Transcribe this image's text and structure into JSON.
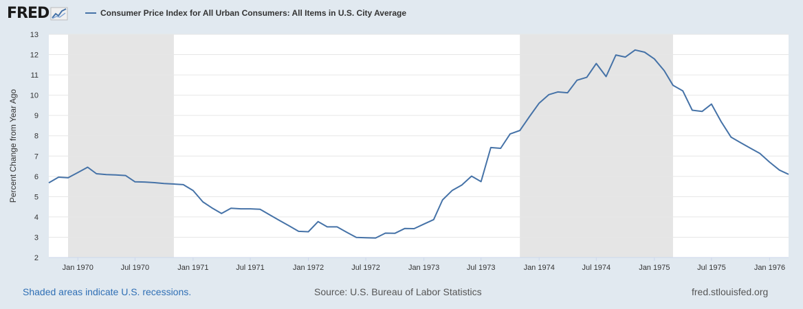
{
  "brand": {
    "logo_text": "FRED"
  },
  "legend": {
    "series_label": "Consumer Price Index for All Urban Consumers: All Items in U.S. City Average",
    "color": "#4572a7"
  },
  "footer": {
    "recession_note": "Shaded areas indicate U.S. recessions.",
    "source": "Source: U.S. Bureau of Labor Statistics",
    "site": "fred.stlouisfed.org"
  },
  "colors": {
    "background": "#e1e9f0",
    "plot_background": "#ffffff",
    "recession_shade": "#e5e5e5",
    "line": "#4572a7",
    "grid": "#e6e6e6"
  },
  "chart_data": {
    "type": "line",
    "title": "",
    "xlabel": "",
    "ylabel": "Percent Change from Year Ago",
    "ylim": [
      2,
      13
    ],
    "yticks": [
      2,
      3,
      4,
      5,
      6,
      7,
      8,
      9,
      10,
      11,
      12,
      13
    ],
    "xlim": [
      "1969-10-01",
      "1976-03-01"
    ],
    "xticks": [
      {
        "date": "1970-01-01",
        "label": "Jan 1970"
      },
      {
        "date": "1970-07-01",
        "label": "Jul 1970"
      },
      {
        "date": "1971-01-01",
        "label": "Jan 1971"
      },
      {
        "date": "1971-07-01",
        "label": "Jul 1971"
      },
      {
        "date": "1972-01-01",
        "label": "Jan 1972"
      },
      {
        "date": "1972-07-01",
        "label": "Jul 1972"
      },
      {
        "date": "1973-01-01",
        "label": "Jan 1973"
      },
      {
        "date": "1973-07-01",
        "label": "Jul 1973"
      },
      {
        "date": "1974-01-01",
        "label": "Jan 1974"
      },
      {
        "date": "1974-07-01",
        "label": "Jul 1974"
      },
      {
        "date": "1975-01-01",
        "label": "Jan 1975"
      },
      {
        "date": "1975-07-01",
        "label": "Jul 1975"
      },
      {
        "date": "1976-01-01",
        "label": "Jan 1976"
      }
    ],
    "recessions": [
      {
        "start": "1969-12-01",
        "end": "1970-11-01"
      },
      {
        "start": "1973-11-01",
        "end": "1975-03-01"
      }
    ],
    "grid": true,
    "series": [
      {
        "name": "Consumer Price Index for All Urban Consumers: All Items in U.S. City Average",
        "x": [
          "1969-10-01",
          "1969-11-01",
          "1969-12-01",
          "1970-01-01",
          "1970-02-01",
          "1970-03-01",
          "1970-04-01",
          "1970-05-01",
          "1970-06-01",
          "1970-07-01",
          "1970-08-01",
          "1970-09-01",
          "1970-10-01",
          "1970-11-01",
          "1970-12-01",
          "1971-01-01",
          "1971-02-01",
          "1971-03-01",
          "1971-04-01",
          "1971-05-01",
          "1971-06-01",
          "1971-07-01",
          "1971-08-01",
          "1971-09-01",
          "1971-10-01",
          "1971-11-01",
          "1971-12-01",
          "1972-01-01",
          "1972-02-01",
          "1972-03-01",
          "1972-04-01",
          "1972-05-01",
          "1972-06-01",
          "1972-07-01",
          "1972-08-01",
          "1972-09-01",
          "1972-10-01",
          "1972-11-01",
          "1972-12-01",
          "1973-01-01",
          "1973-02-01",
          "1973-03-01",
          "1973-04-01",
          "1973-05-01",
          "1973-06-01",
          "1973-07-01",
          "1973-08-01",
          "1973-09-01",
          "1973-10-01",
          "1973-11-01",
          "1973-12-01",
          "1974-01-01",
          "1974-02-01",
          "1974-03-01",
          "1974-04-01",
          "1974-05-01",
          "1974-06-01",
          "1974-07-01",
          "1974-08-01",
          "1974-09-01",
          "1974-10-01",
          "1974-11-01",
          "1974-12-01",
          "1975-01-01",
          "1975-02-01",
          "1975-03-01",
          "1975-04-01",
          "1975-05-01",
          "1975-06-01",
          "1975-07-01",
          "1975-08-01",
          "1975-09-01",
          "1975-10-01",
          "1975-11-01",
          "1975-12-01",
          "1976-01-01",
          "1976-02-01",
          "1976-03-01"
        ],
        "values": [
          5.68,
          5.96,
          5.93,
          6.19,
          6.45,
          6.13,
          6.09,
          6.07,
          6.04,
          5.73,
          5.72,
          5.69,
          5.65,
          5.62,
          5.59,
          5.3,
          4.74,
          4.45,
          4.17,
          4.43,
          4.4,
          4.4,
          4.38,
          4.1,
          3.83,
          3.56,
          3.29,
          3.27,
          3.77,
          3.51,
          3.51,
          3.25,
          2.99,
          2.97,
          2.96,
          3.2,
          3.19,
          3.43,
          3.42,
          3.65,
          3.87,
          4.84,
          5.31,
          5.57,
          6.01,
          5.74,
          7.42,
          7.38,
          8.09,
          8.26,
          8.94,
          9.61,
          10.03,
          10.16,
          10.12,
          10.74,
          10.88,
          11.56,
          10.92,
          11.98,
          11.88,
          12.23,
          12.12,
          11.79,
          11.21,
          10.49,
          10.21,
          9.26,
          9.2,
          9.56,
          8.68,
          7.93,
          7.66,
          7.39,
          7.13,
          6.7,
          6.31,
          6.1
        ]
      }
    ]
  }
}
